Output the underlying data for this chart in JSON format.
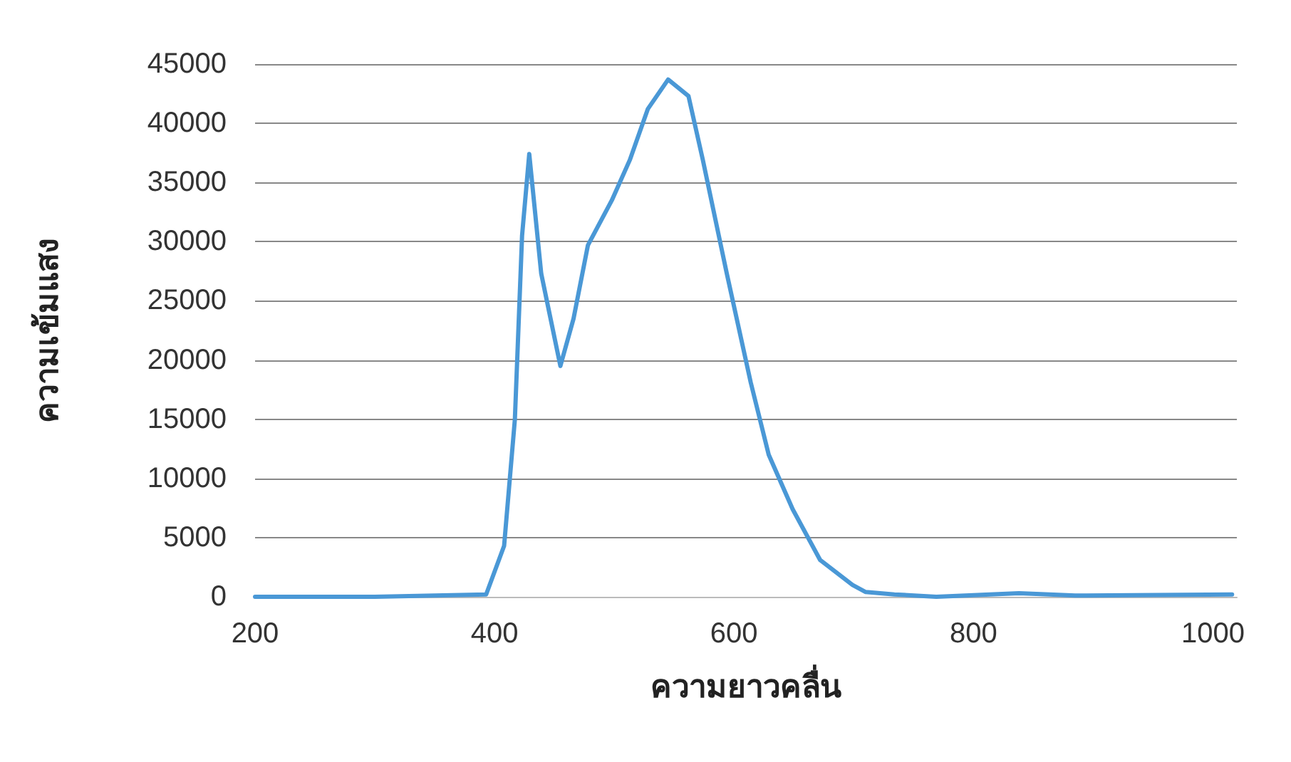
{
  "chart_data": {
    "type": "line",
    "xlabel": "ความยาวคลื่น",
    "ylabel": "ความเข้มแสง",
    "x": [
      200,
      300,
      393,
      408,
      417,
      423,
      429,
      439,
      455,
      466,
      478,
      498,
      513,
      528,
      545,
      562,
      574,
      594,
      614,
      629,
      649,
      672,
      699,
      710,
      734,
      769,
      838,
      885,
      1016
    ],
    "series": [
      {
        "color": "#4a98d6",
        "values": [
          0,
          0,
          200,
          4300,
          15000,
          30500,
          37400,
          27300,
          19500,
          23500,
          29700,
          33500,
          36900,
          41200,
          43700,
          42300,
          36900,
          27300,
          18100,
          12000,
          7400,
          3100,
          1000,
          400,
          200,
          0,
          300,
          100,
          200
        ]
      }
    ],
    "xlim": [
      200,
      1020
    ],
    "xticks": [
      200,
      400,
      600,
      800,
      1000
    ],
    "ylim": [
      0,
      45000
    ],
    "yticks": [
      0,
      5000,
      10000,
      15000,
      20000,
      25000,
      30000,
      35000,
      40000,
      45000
    ],
    "grid": "y",
    "marker": "none",
    "line_style": "solid"
  }
}
